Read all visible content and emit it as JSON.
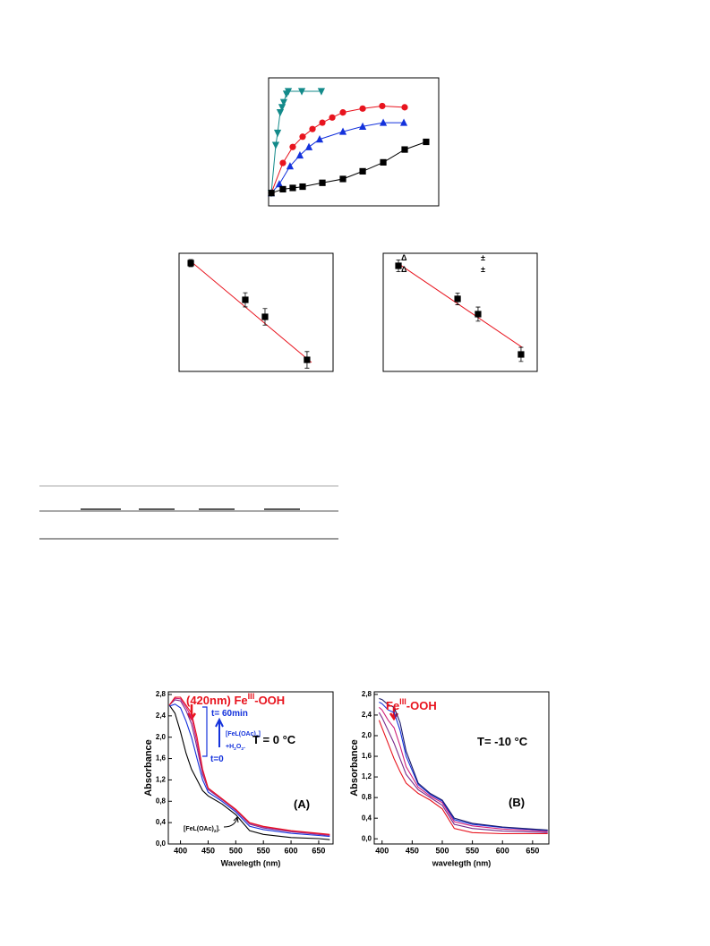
{
  "chart_data": [
    {
      "type": "line",
      "xlim": [
        0,
        10
      ],
      "ylim": [
        0,
        10
      ],
      "series": [
        {
          "color": "#138a8a",
          "marker": "triangle-down",
          "x": [
            0.16,
            0.42,
            0.53,
            0.68,
            0.79,
            0.89,
            1.05,
            1.16,
            1.95,
            3.1
          ],
          "values": [
            1.0,
            4.75,
            5.7,
            7.3,
            7.7,
            8.1,
            8.75,
            8.95,
            8.95,
            8.95
          ]
        },
        {
          "color": "#e8141e",
          "marker": "circle",
          "x": [
            0.16,
            0.84,
            1.42,
            2.0,
            2.58,
            3.16,
            3.74,
            4.37,
            5.53,
            6.68,
            8.0
          ],
          "values": [
            1.0,
            3.35,
            4.6,
            5.4,
            6.0,
            6.5,
            6.9,
            7.3,
            7.6,
            7.8,
            7.7
          ]
        },
        {
          "color": "#1432dc",
          "marker": "triangle-up",
          "x": [
            0.16,
            0.63,
            1.26,
            1.84,
            2.37,
            3.0,
            4.37,
            5.53,
            6.74,
            7.95
          ],
          "values": [
            1.0,
            1.7,
            3.1,
            3.95,
            4.6,
            5.2,
            5.8,
            6.2,
            6.5,
            6.5
          ]
        },
        {
          "color": "#000000",
          "marker": "square",
          "x": [
            0.16,
            0.84,
            1.42,
            2.0,
            3.16,
            4.37,
            5.53,
            6.74,
            8.0,
            9.26
          ],
          "values": [
            1.0,
            1.3,
            1.4,
            1.5,
            1.8,
            2.1,
            2.7,
            3.4,
            4.4,
            5.0
          ]
        }
      ]
    },
    {
      "type": "scatter",
      "xlim": [
        0,
        10
      ],
      "ylim": [
        0,
        10
      ],
      "series": [
        {
          "color": "#000000",
          "marker": "square",
          "x": [
            0.76,
            4.3,
            5.58,
            8.31
          ],
          "values": [
            9.17,
            6.06,
            4.62,
            0.98
          ],
          "errors": [
            0.3,
            0.6,
            0.7,
            0.7
          ]
        }
      ],
      "fit": {
        "color": "#e8141e",
        "x": [
          0.76,
          8.6
        ],
        "values": [
          9.32,
          0.76
        ]
      }
    },
    {
      "type": "scatter",
      "xlim": [
        0,
        10
      ],
      "ylim": [
        0,
        10
      ],
      "series": [
        {
          "color": "#000000",
          "marker": "square",
          "x": [
            0.99,
            4.83,
            6.16,
            8.95
          ],
          "values": [
            8.94,
            6.14,
            4.85,
            1.44
          ],
          "errors": [
            0.5,
            0.5,
            0.6,
            0.6
          ]
        }
      ],
      "fit": {
        "color": "#e8141e",
        "x": [
          0.93,
          9.01
        ],
        "values": [
          9.17,
          2.05
        ]
      },
      "annotations": [
        {
          "parts": [
            "Δ"
          ]
        },
        {
          "parts": [
            "±"
          ]
        },
        {
          "parts": [
            "Δ"
          ]
        },
        {
          "parts": [
            "±"
          ]
        }
      ]
    },
    {
      "type": "line",
      "xlabel": "Wavelegth (nm)",
      "ylabel": "Absorbance",
      "xlim": [
        378,
        676
      ],
      "ylim": [
        0,
        2.85
      ],
      "xticks": [
        400,
        450,
        500,
        550,
        600,
        650
      ],
      "yticks": [
        {
          "value": 0,
          "label": "0,0"
        },
        {
          "value": 0.4,
          "label": "0,4"
        },
        {
          "value": 0.8,
          "label": "0,8"
        },
        {
          "value": 1.2,
          "label": "1,2"
        },
        {
          "value": 1.6,
          "label": "1,6"
        },
        {
          "value": 2.0,
          "label": "2,0"
        },
        {
          "value": 2.4,
          "label": "2,4"
        },
        {
          "value": 2.8,
          "label": "2,8"
        }
      ],
      "x": [
        380,
        390,
        400,
        410,
        420,
        430,
        440,
        450,
        475,
        500,
        525,
        550,
        600,
        650,
        670
      ],
      "series": [
        {
          "color": "#000000",
          "values": [
            2.6,
            2.45,
            2.1,
            1.7,
            1.4,
            1.2,
            1.0,
            0.9,
            0.75,
            0.55,
            0.25,
            0.18,
            0.12,
            0.1,
            0.08
          ]
        },
        {
          "color": "#1432dc",
          "values": [
            2.58,
            2.62,
            2.55,
            2.3,
            2.0,
            1.6,
            1.2,
            0.97,
            0.8,
            0.6,
            0.33,
            0.27,
            0.2,
            0.16,
            0.14
          ]
        },
        {
          "color": "#7a2a8a",
          "values": [
            2.6,
            2.7,
            2.68,
            2.5,
            2.25,
            1.8,
            1.3,
            1.02,
            0.83,
            0.63,
            0.37,
            0.3,
            0.23,
            0.18,
            0.16
          ]
        },
        {
          "color": "#d0207a",
          "values": [
            2.6,
            2.73,
            2.72,
            2.56,
            2.38,
            1.9,
            1.36,
            1.04,
            0.84,
            0.64,
            0.39,
            0.32,
            0.24,
            0.19,
            0.17
          ]
        },
        {
          "color": "#e8141e",
          "values": [
            2.6,
            2.75,
            2.75,
            2.6,
            2.45,
            2.0,
            1.4,
            1.05,
            0.85,
            0.65,
            0.4,
            0.33,
            0.25,
            0.2,
            0.18
          ]
        }
      ],
      "annotations": [
        {
          "parts": [
            "(420nm) Fe",
            "III",
            "-OOH"
          ],
          "shift": [
            "normal",
            "super",
            "normal"
          ],
          "color": "#e8141e"
        },
        {
          "parts": [
            "t= 60min"
          ],
          "color": "#1432dc"
        },
        {
          "parts": [
            "[FeL(OAc)",
            "2",
            "]"
          ],
          "shift": [
            "normal",
            "sub",
            "normal"
          ],
          "color": "#1432dc"
        },
        {
          "parts": [
            "+H",
            "2",
            "O",
            "2",
            "."
          ],
          "shift": [
            "normal",
            "sub",
            "normal",
            "sub",
            "normal"
          ],
          "color": "#1432dc"
        },
        {
          "parts": [
            "t=0"
          ],
          "color": "#1432dc"
        },
        {
          "parts": [
            "T = 0 °C"
          ],
          "color": "#000000"
        },
        {
          "parts": [
            "(A)"
          ],
          "color": "#000000"
        },
        {
          "parts": [
            "[FeL(OAc)",
            "2",
            "]."
          ],
          "shift": [
            "normal",
            "sub",
            "normal"
          ],
          "color": "#000000"
        }
      ]
    },
    {
      "type": "line",
      "xlabel": "wavelegth (nm)",
      "ylabel": "Absorbance",
      "xlim": [
        387,
        677
      ],
      "ylim": [
        -0.1,
        2.85
      ],
      "xticks": [
        400,
        450,
        500,
        550,
        600,
        650
      ],
      "yticks": [
        {
          "value": 0,
          "label": "0,0"
        },
        {
          "value": 0.4,
          "label": "0,4"
        },
        {
          "value": 0.8,
          "label": "0,8"
        },
        {
          "value": 1.2,
          "label": "1,2"
        },
        {
          "value": 1.6,
          "label": "1,6"
        },
        {
          "value": 2.0,
          "label": "2,0"
        },
        {
          "value": 2.4,
          "label": "2,4"
        },
        {
          "value": 2.8,
          "label": "2,8"
        }
      ],
      "x": [
        395,
        400,
        410,
        420,
        430,
        440,
        460,
        480,
        500,
        520,
        550,
        600,
        650,
        675
      ],
      "series": [
        {
          "color": "#e8141e",
          "values": [
            2.3,
            2.15,
            1.85,
            1.55,
            1.3,
            1.08,
            0.88,
            0.75,
            0.58,
            0.2,
            0.12,
            0.1,
            0.1,
            0.1
          ]
        },
        {
          "color": "#7a2a8a",
          "values": [
            2.45,
            2.35,
            2.1,
            1.85,
            1.55,
            1.25,
            0.95,
            0.8,
            0.65,
            0.28,
            0.2,
            0.15,
            0.13,
            0.12
          ]
        },
        {
          "color": "#d0207a",
          "values": [
            2.55,
            2.5,
            2.3,
            2.15,
            1.8,
            1.4,
            1.0,
            0.83,
            0.7,
            0.33,
            0.25,
            0.19,
            0.16,
            0.14
          ]
        },
        {
          "color": "#1432dc",
          "values": [
            2.65,
            2.62,
            2.5,
            2.45,
            2.1,
            1.6,
            1.05,
            0.86,
            0.73,
            0.37,
            0.28,
            0.22,
            0.18,
            0.16
          ]
        },
        {
          "color": "#1a1a6a",
          "values": [
            2.72,
            2.7,
            2.6,
            2.55,
            2.25,
            1.7,
            1.08,
            0.88,
            0.75,
            0.4,
            0.3,
            0.23,
            0.19,
            0.17
          ]
        }
      ],
      "annotations": [
        {
          "parts": [
            "Fe",
            "III",
            "-OOH"
          ],
          "shift": [
            "normal",
            "super",
            "normal"
          ],
          "color": "#e8141e"
        },
        {
          "parts": [
            "T= -10 °C"
          ],
          "color": "#000000"
        },
        {
          "parts": [
            "(B)"
          ],
          "color": "#000000"
        }
      ]
    }
  ]
}
